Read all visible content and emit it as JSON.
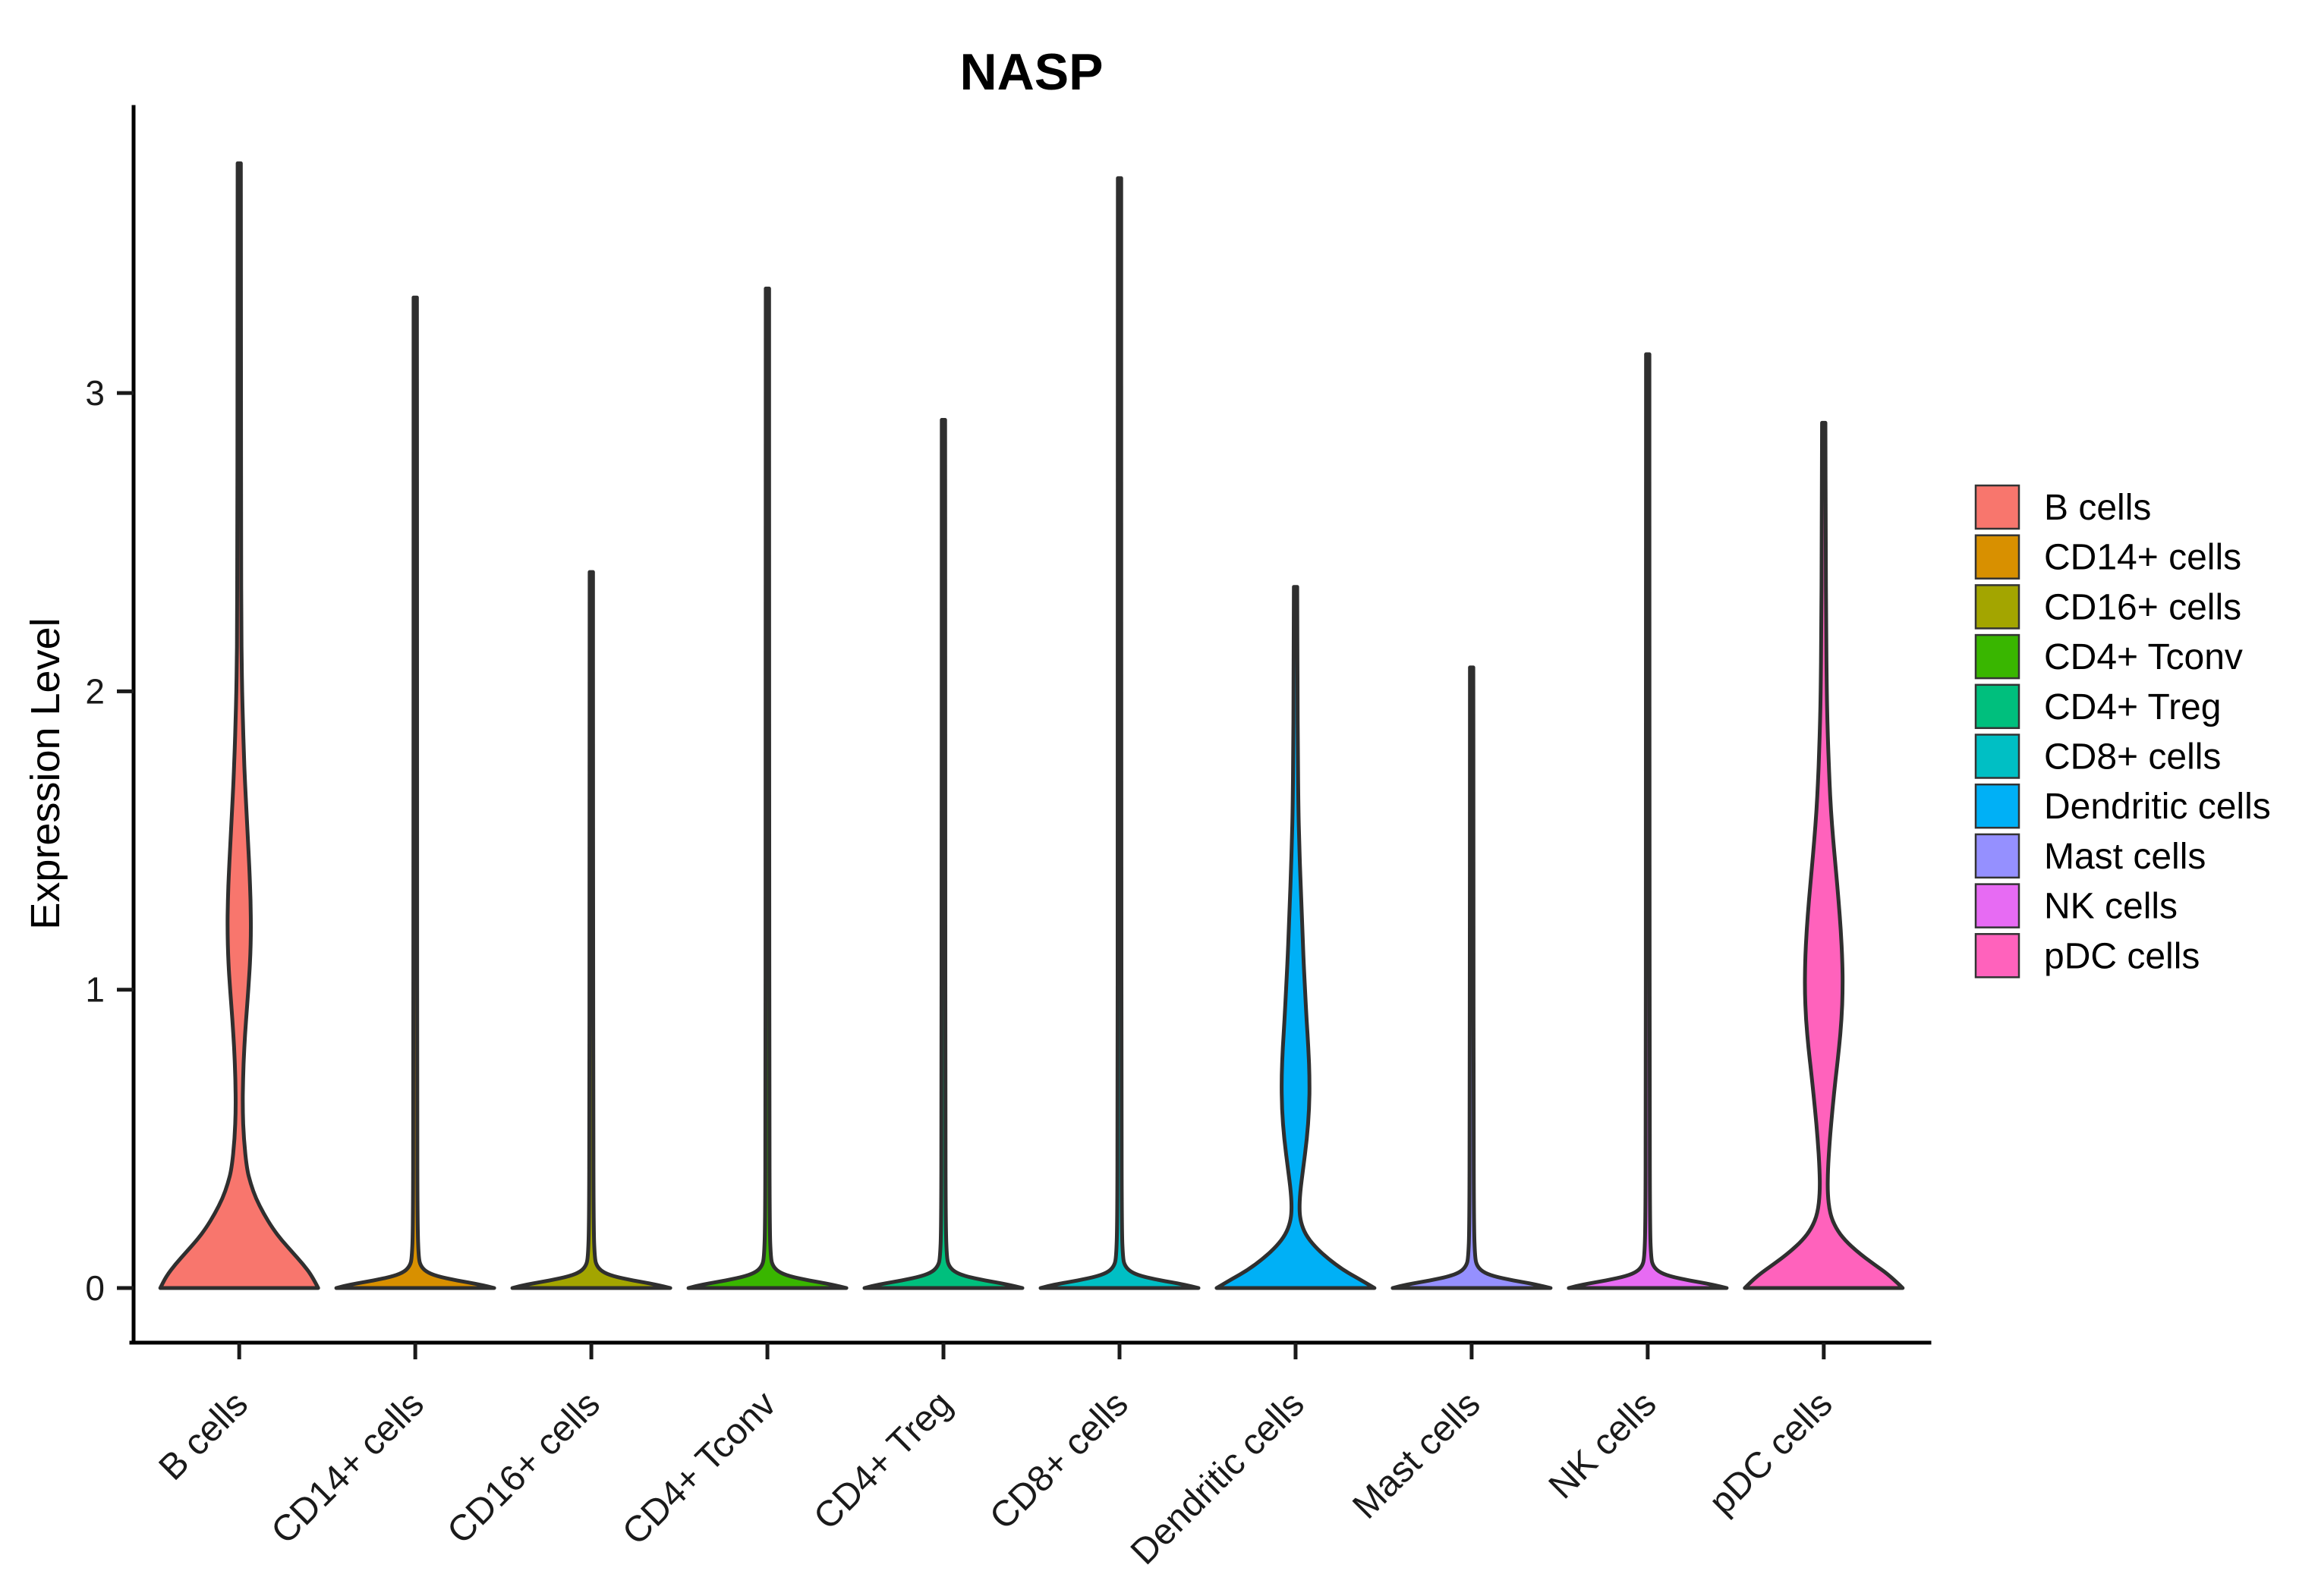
{
  "chart_data": {
    "type": "violin",
    "title": "NASP",
    "xlabel": "",
    "ylabel": "Expression Level",
    "yticks": [
      "0",
      "1",
      "2",
      "3"
    ],
    "ylim": [
      -0.18,
      3.95
    ],
    "grid": false,
    "legend_position": "right",
    "categories": [
      "B cells",
      "CD14+ cells",
      "CD16+ cells",
      "CD4+ Tconv",
      "CD4+ Treg",
      "CD8+ cells",
      "Dendritic cells",
      "Mast cells",
      "NK cells",
      "pDC cells"
    ],
    "series": [
      {
        "name": "B cells",
        "color": "#F8766D",
        "max_expression": 3.77,
        "density_profile": [
          [
            0,
            104
          ],
          [
            0.04,
            96
          ],
          [
            0.08,
            84
          ],
          [
            0.12,
            70
          ],
          [
            0.16,
            56
          ],
          [
            0.2,
            44
          ],
          [
            0.25,
            32
          ],
          [
            0.3,
            22
          ],
          [
            0.35,
            15
          ],
          [
            0.4,
            10
          ],
          [
            0.5,
            6
          ],
          [
            0.6,
            4.5
          ],
          [
            0.7,
            5
          ],
          [
            0.8,
            6.5
          ],
          [
            0.9,
            9
          ],
          [
            1.0,
            12
          ],
          [
            1.1,
            14.5
          ],
          [
            1.2,
            15.5
          ],
          [
            1.3,
            15
          ],
          [
            1.4,
            13.5
          ],
          [
            1.5,
            11.5
          ],
          [
            1.6,
            9.5
          ],
          [
            1.7,
            7.5
          ],
          [
            1.8,
            6
          ],
          [
            1.9,
            4.8
          ],
          [
            2.0,
            3.8
          ],
          [
            2.1,
            3.2
          ],
          [
            2.2,
            2.8
          ],
          [
            2.5,
            2.5
          ],
          [
            3.0,
            2.3
          ],
          [
            3.77,
            2.1
          ]
        ]
      },
      {
        "name": "CD14+ cells",
        "color": "#D89000",
        "max_expression": 3.32,
        "density_profile": [
          [
            0,
            104
          ],
          [
            0.012,
            85
          ],
          [
            0.025,
            55
          ],
          [
            0.04,
            28
          ],
          [
            0.055,
            14
          ],
          [
            0.075,
            7
          ],
          [
            0.1,
            4.5
          ],
          [
            0.2,
            3
          ],
          [
            0.6,
            2.6
          ],
          [
            1.5,
            2.4
          ],
          [
            2.5,
            2.3
          ],
          [
            3.32,
            2.2
          ]
        ]
      },
      {
        "name": "CD16+ cells",
        "color": "#A3A500",
        "max_expression": 2.4,
        "density_profile": [
          [
            0,
            104
          ],
          [
            0.012,
            85
          ],
          [
            0.025,
            55
          ],
          [
            0.04,
            28
          ],
          [
            0.055,
            14
          ],
          [
            0.075,
            7
          ],
          [
            0.1,
            4.5
          ],
          [
            0.2,
            3
          ],
          [
            0.6,
            2.6
          ],
          [
            1.2,
            2.4
          ],
          [
            1.8,
            2.3
          ],
          [
            2.4,
            2.2
          ]
        ]
      },
      {
        "name": "CD4+ Tconv",
        "color": "#39B600",
        "max_expression": 3.35,
        "density_profile": [
          [
            0,
            104
          ],
          [
            0.012,
            85
          ],
          [
            0.025,
            55
          ],
          [
            0.04,
            28
          ],
          [
            0.055,
            14
          ],
          [
            0.075,
            7
          ],
          [
            0.1,
            4.5
          ],
          [
            0.2,
            3
          ],
          [
            0.6,
            2.6
          ],
          [
            1.5,
            2.4
          ],
          [
            2.5,
            2.3
          ],
          [
            3.35,
            2.2
          ]
        ]
      },
      {
        "name": "CD4+ Treg",
        "color": "#00BF7D",
        "max_expression": 2.91,
        "density_profile": [
          [
            0,
            104
          ],
          [
            0.012,
            85
          ],
          [
            0.025,
            55
          ],
          [
            0.04,
            28
          ],
          [
            0.055,
            14
          ],
          [
            0.075,
            7
          ],
          [
            0.1,
            4.5
          ],
          [
            0.2,
            3
          ],
          [
            0.6,
            2.6
          ],
          [
            1.5,
            2.4
          ],
          [
            2.2,
            2.3
          ],
          [
            2.91,
            2.2
          ]
        ]
      },
      {
        "name": "CD8+ cells",
        "color": "#00BFC4",
        "max_expression": 3.72,
        "density_profile": [
          [
            0,
            104
          ],
          [
            0.012,
            85
          ],
          [
            0.025,
            55
          ],
          [
            0.04,
            28
          ],
          [
            0.055,
            14
          ],
          [
            0.075,
            7
          ],
          [
            0.1,
            4.5
          ],
          [
            0.2,
            3
          ],
          [
            0.6,
            2.6
          ],
          [
            1.5,
            2.4
          ],
          [
            2.8,
            2.3
          ],
          [
            3.72,
            2.2
          ]
        ]
      },
      {
        "name": "Dendritic cells",
        "color": "#00B0F6",
        "max_expression": 2.35,
        "density_profile": [
          [
            0,
            104
          ],
          [
            0.03,
            84
          ],
          [
            0.06,
            63
          ],
          [
            0.1,
            42
          ],
          [
            0.14,
            25
          ],
          [
            0.18,
            13
          ],
          [
            0.22,
            7
          ],
          [
            0.26,
            5
          ],
          [
            0.32,
            6
          ],
          [
            0.4,
            10
          ],
          [
            0.5,
            15
          ],
          [
            0.6,
            18
          ],
          [
            0.7,
            18.5
          ],
          [
            0.8,
            17
          ],
          [
            0.9,
            14.5
          ],
          [
            1.0,
            12.5
          ],
          [
            1.1,
            10.5
          ],
          [
            1.2,
            9
          ],
          [
            1.3,
            7.5
          ],
          [
            1.4,
            6
          ],
          [
            1.5,
            4.8
          ],
          [
            1.6,
            3.8
          ],
          [
            1.8,
            3
          ],
          [
            2.0,
            2.6
          ],
          [
            2.35,
            2.2
          ]
        ]
      },
      {
        "name": "Mast cells",
        "color": "#9590FF",
        "max_expression": 2.08,
        "density_profile": [
          [
            0,
            104
          ],
          [
            0.012,
            85
          ],
          [
            0.025,
            55
          ],
          [
            0.04,
            28
          ],
          [
            0.055,
            14
          ],
          [
            0.075,
            7
          ],
          [
            0.1,
            4.5
          ],
          [
            0.2,
            3
          ],
          [
            0.6,
            2.6
          ],
          [
            1.2,
            2.4
          ],
          [
            1.6,
            2.3
          ],
          [
            2.08,
            2.2
          ]
        ]
      },
      {
        "name": "NK cells",
        "color": "#E76BF3",
        "max_expression": 3.13,
        "density_profile": [
          [
            0,
            104
          ],
          [
            0.012,
            85
          ],
          [
            0.025,
            55
          ],
          [
            0.04,
            28
          ],
          [
            0.055,
            14
          ],
          [
            0.075,
            7
          ],
          [
            0.1,
            4.5
          ],
          [
            0.2,
            3
          ],
          [
            0.6,
            2.6
          ],
          [
            1.5,
            2.4
          ],
          [
            2.4,
            2.3
          ],
          [
            3.13,
            2.2
          ]
        ]
      },
      {
        "name": "pDC cells",
        "color": "#FF62BC",
        "max_expression": 2.9,
        "density_profile": [
          [
            0,
            104
          ],
          [
            0.04,
            88
          ],
          [
            0.08,
            66
          ],
          [
            0.12,
            45
          ],
          [
            0.16,
            28
          ],
          [
            0.2,
            16
          ],
          [
            0.25,
            8
          ],
          [
            0.32,
            5
          ],
          [
            0.4,
            5.5
          ],
          [
            0.5,
            8
          ],
          [
            0.6,
            11.5
          ],
          [
            0.7,
            15.5
          ],
          [
            0.8,
            20
          ],
          [
            0.9,
            23.5
          ],
          [
            1.0,
            25
          ],
          [
            1.1,
            24.5
          ],
          [
            1.2,
            22.5
          ],
          [
            1.3,
            19.5
          ],
          [
            1.4,
            16
          ],
          [
            1.5,
            12.5
          ],
          [
            1.6,
            9.5
          ],
          [
            1.7,
            7.5
          ],
          [
            1.8,
            6
          ],
          [
            1.9,
            4.8
          ],
          [
            2.0,
            4
          ],
          [
            2.2,
            3.2
          ],
          [
            2.5,
            2.6
          ],
          [
            2.9,
            2.2
          ]
        ]
      }
    ],
    "legend": {
      "entries": [
        "B cells",
        "CD14+ cells",
        "CD16+ cells",
        "CD4+ Tconv",
        "CD4+ Treg",
        "CD8+ cells",
        "Dendritic cells",
        "Mast cells",
        "NK cells",
        "pDC cells"
      ]
    }
  }
}
